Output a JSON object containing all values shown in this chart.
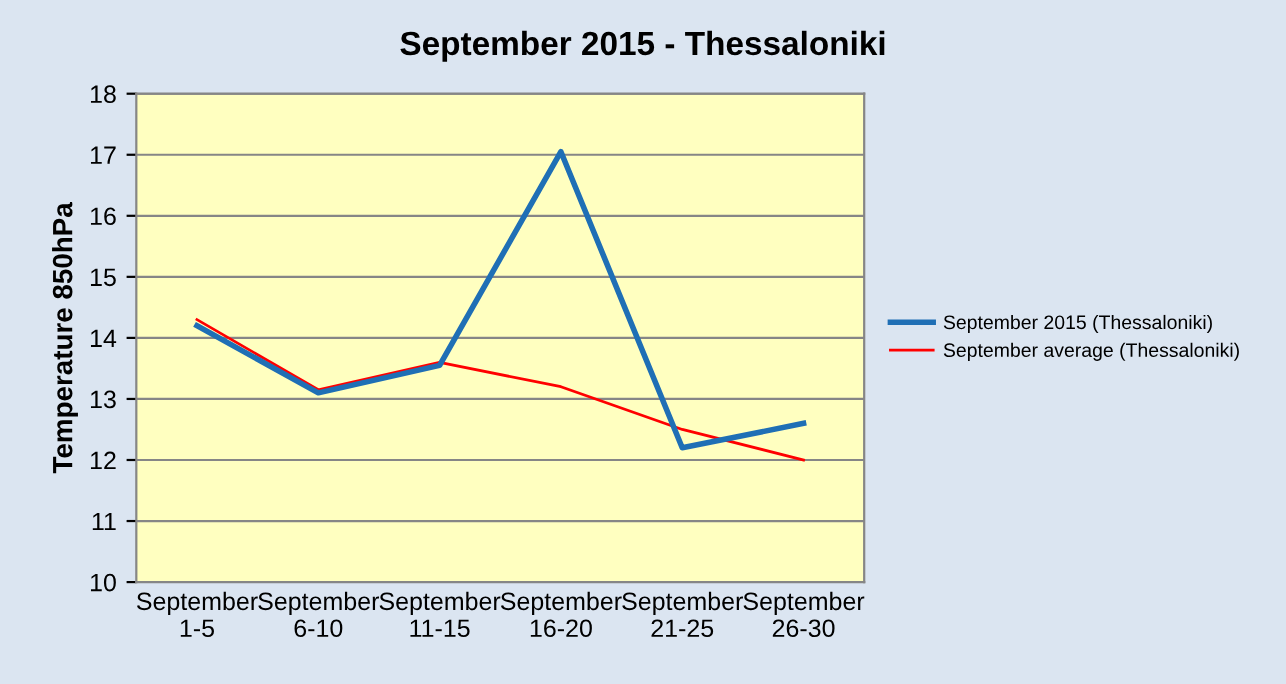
{
  "chart_data": {
    "type": "line",
    "title": "September 2015 - Thessaloniki",
    "ylabel": "Temperature 850hPa",
    "categories": [
      "September\n1-5",
      "September\n6-10",
      "September\n11-15",
      "September\n16-20",
      "September\n21-25",
      "September\n26-30"
    ],
    "series": [
      {
        "name": "September 2015 (Thessaloniki)",
        "color": "#1f6fb5",
        "values": [
          14.2,
          13.1,
          13.55,
          17.05,
          12.2,
          12.6
        ]
      },
      {
        "name": "September average (Thessaloniki)",
        "color": "#ff0000",
        "values": [
          14.3,
          13.15,
          13.6,
          13.2,
          12.5,
          12.0
        ]
      }
    ],
    "ylim": [
      10,
      18
    ],
    "yticks": [
      10,
      11,
      12,
      13,
      14,
      15,
      16,
      17,
      18
    ],
    "grid": "y",
    "legend": "right",
    "marker": "none",
    "line_style": "solid"
  }
}
